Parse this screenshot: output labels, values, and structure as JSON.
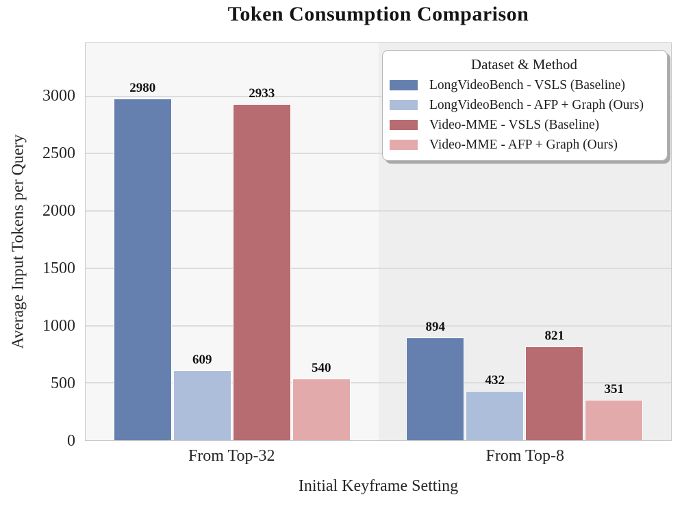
{
  "chart_data": {
    "type": "bar",
    "title": "Token Consumption Comparison",
    "xlabel": "Initial Keyframe Setting",
    "ylabel": "Average Input Tokens per Query",
    "categories": [
      "From Top-32",
      "From Top-8"
    ],
    "series": [
      {
        "name": "LongVideoBench - VSLS (Baseline)",
        "color": "#6580AE",
        "values": [
          2980,
          894
        ]
      },
      {
        "name": "LongVideoBench - AFP + Graph (Ours)",
        "color": "#ACBEDA",
        "values": [
          609,
          432
        ]
      },
      {
        "name": "Video-MME - VSLS (Baseline)",
        "color": "#B66C70",
        "values": [
          2933,
          821
        ]
      },
      {
        "name": "Video-MME - AFP + Graph (Ours)",
        "color": "#E3AAAC",
        "values": [
          540,
          351
        ]
      }
    ],
    "legend_title": "Dataset & Method",
    "legend_position": "upper right",
    "y_ticks": [
      0,
      500,
      1000,
      1500,
      2000,
      2500,
      3000
    ],
    "ylim": [
      0,
      3464
    ],
    "grid": "horizontal",
    "bar_value_labels": true
  }
}
